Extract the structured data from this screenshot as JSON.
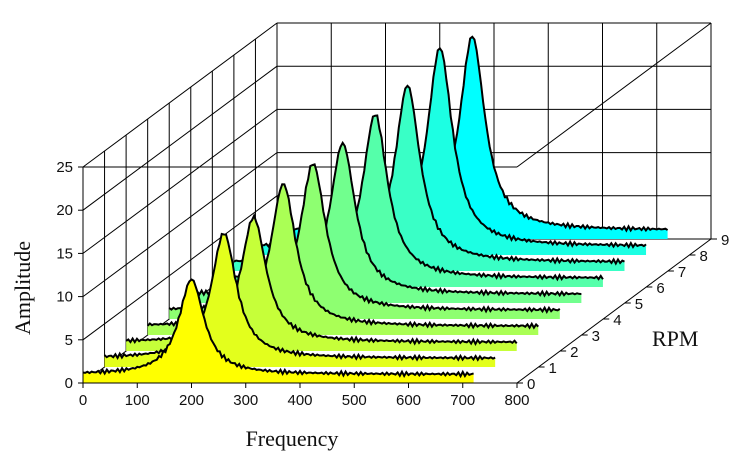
{
  "chart_data": {
    "type": "waterfall",
    "title": "",
    "xlabel": "Frequency",
    "ylabel": "Amplitude",
    "zlabel": "RPM",
    "xlim": [
      0,
      800
    ],
    "ylim": [
      0,
      25
    ],
    "zlim": [
      0,
      9
    ],
    "x_ticks": [
      "0",
      "100",
      "200",
      "300",
      "400",
      "500",
      "600",
      "700",
      "800"
    ],
    "y_ticks": [
      "0",
      "5",
      "10",
      "15",
      "20",
      "25"
    ],
    "z_ticks": [
      "0",
      "1",
      "2",
      "3",
      "4",
      "5",
      "6",
      "7",
      "8",
      "9"
    ],
    "grid": true,
    "colormap": [
      "#ffff00",
      "#00ffff"
    ],
    "series": [
      {
        "rpm": 0,
        "peak_freq": 200,
        "peak_amp": 12.0,
        "baseline": 1.0,
        "fmax": 720
      },
      {
        "rpm": 1,
        "peak_freq": 220,
        "peak_amp": 15.5,
        "baseline": 1.0,
        "fmax": 720
      },
      {
        "rpm": 2,
        "peak_freq": 235,
        "peak_amp": 15.5,
        "baseline": 1.0,
        "fmax": 720
      },
      {
        "rpm": 3,
        "peak_freq": 250,
        "peak_amp": 17.5,
        "baseline": 1.0,
        "fmax": 720
      },
      {
        "rpm": 4,
        "peak_freq": 265,
        "peak_amp": 18.0,
        "baseline": 1.0,
        "fmax": 720
      },
      {
        "rpm": 5,
        "peak_freq": 280,
        "peak_amp": 18.5,
        "baseline": 1.0,
        "fmax": 720
      },
      {
        "rpm": 6,
        "peak_freq": 300,
        "peak_amp": 20.0,
        "baseline": 1.0,
        "fmax": 720
      },
      {
        "rpm": 7,
        "peak_freq": 320,
        "peak_amp": 21.5,
        "baseline": 1.0,
        "fmax": 720
      },
      {
        "rpm": 8,
        "peak_freq": 340,
        "peak_amp": 24.0,
        "baseline": 1.0,
        "fmax": 720
      },
      {
        "rpm": 9,
        "peak_freq": 360,
        "peak_amp": 23.5,
        "baseline": 1.0,
        "fmax": 720
      }
    ]
  }
}
